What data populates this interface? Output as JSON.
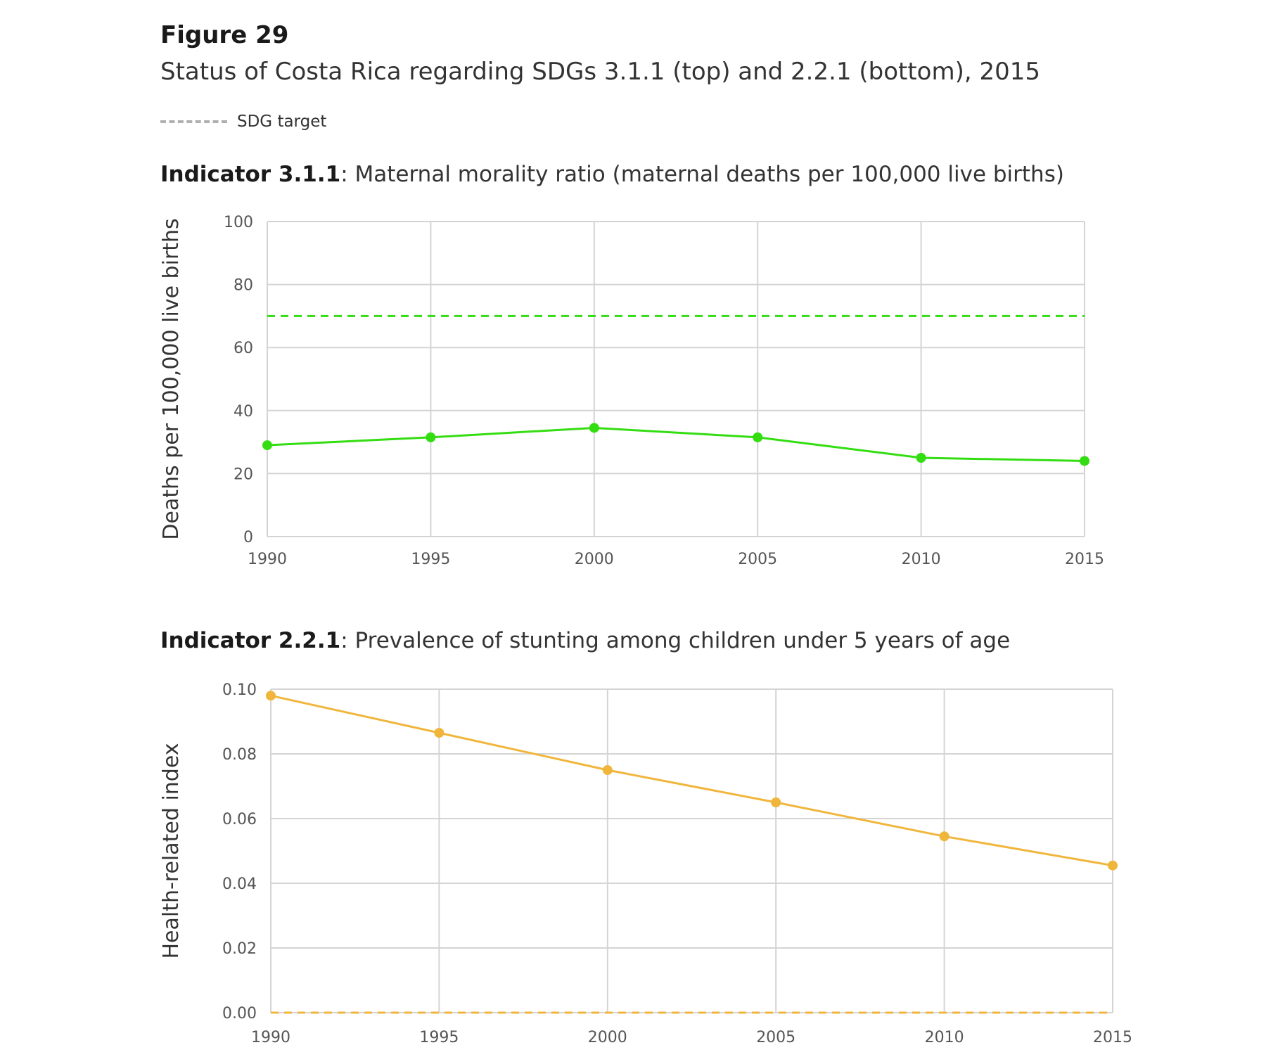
{
  "figure": {
    "label": "Figure 29",
    "subtitle": "Status of Costa Rica regarding SDGs 3.1.1 (top) and 2.2.1 (bottom), 2015",
    "legend_label": "SDG target",
    "legend_color": "#b0b0b0"
  },
  "chart_data": [
    {
      "type": "line",
      "indicator_code": "Indicator 3.1.1",
      "title": "Maternal morality ratio (maternal deaths per 100,000 live births)",
      "ylabel": "Deaths per 100,000 live births",
      "xlabel": "",
      "x": [
        1990,
        1995,
        2000,
        2005,
        2010,
        2015
      ],
      "x_tick_labels": [
        "1990",
        "1995",
        "2000",
        "2005",
        "2010",
        "2015"
      ],
      "y_tick_labels": [
        "0",
        "20",
        "40",
        "60",
        "80",
        "100"
      ],
      "ylim": [
        0,
        100
      ],
      "grid": true,
      "color": "#33dd11",
      "values": [
        29,
        31.5,
        34.5,
        31.5,
        25,
        24
      ],
      "target": 70
    },
    {
      "type": "line",
      "indicator_code": "Indicator 2.2.1",
      "title": "Prevalence of stunting among children under 5 years of age",
      "ylabel": "Health-related index",
      "xlabel": "",
      "x": [
        1990,
        1995,
        2000,
        2005,
        2010,
        2015
      ],
      "x_tick_labels": [
        "1990",
        "1995",
        "2000",
        "2005",
        "2010",
        "2015"
      ],
      "y_tick_labels": [
        "0.00",
        "0.02",
        "0.04",
        "0.06",
        "0.08",
        "0.10"
      ],
      "ylim": [
        0,
        0.1
      ],
      "grid": true,
      "color": "#f0b63c",
      "values": [
        0.098,
        0.0865,
        0.075,
        0.065,
        0.0545,
        0.0455
      ],
      "target": 0
    }
  ]
}
